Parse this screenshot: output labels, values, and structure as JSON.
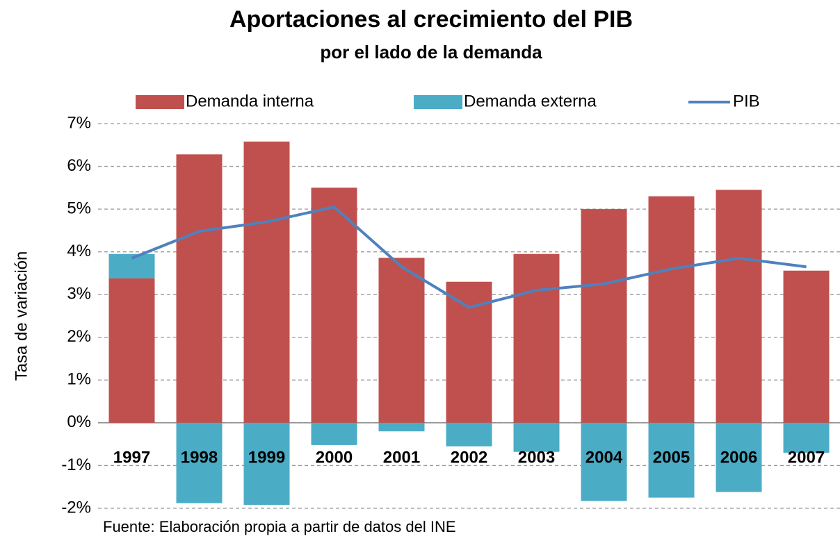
{
  "chart_data": {
    "type": "bar",
    "title": "Aportaciones al crecimiento del PIB",
    "subtitle": "por el lado de la demanda",
    "y_label": "Tasa de variación",
    "source": "Fuente: Elaboración propia a partir de datos del INE",
    "categories": [
      "1997",
      "1998",
      "1999",
      "2000",
      "2001",
      "2002",
      "2003",
      "2004",
      "2005",
      "2006",
      "2007"
    ],
    "series": [
      {
        "name": "Demanda interna",
        "color": "#c0504d",
        "type": "bar",
        "values": [
          3.38,
          6.28,
          6.58,
          5.5,
          3.86,
          3.3,
          3.95,
          5.0,
          5.3,
          5.45,
          3.56
        ]
      },
      {
        "name": "Demanda externa",
        "color": "#4bacc6",
        "type": "bar",
        "values": [
          0.57,
          -1.88,
          -1.92,
          -0.52,
          -0.2,
          -0.55,
          -0.68,
          -1.83,
          -1.75,
          -1.62,
          -0.7
        ]
      },
      {
        "name": "PIB",
        "color": "#4f81bd",
        "type": "line",
        "values": [
          3.85,
          4.48,
          4.7,
          5.05,
          3.65,
          2.7,
          3.1,
          3.25,
          3.6,
          3.85,
          3.65
        ]
      }
    ],
    "stacked": true,
    "ylim": [
      -2,
      7
    ],
    "yticks": [
      {
        "value": -2,
        "label": "-2%"
      },
      {
        "value": -1,
        "label": "-1%"
      },
      {
        "value": 0,
        "label": "0%"
      },
      {
        "value": 1,
        "label": "1%"
      },
      {
        "value": 2,
        "label": "2%"
      },
      {
        "value": 3,
        "label": "3%"
      },
      {
        "value": 4,
        "label": "4%"
      },
      {
        "value": 5,
        "label": "5%"
      },
      {
        "value": 6,
        "label": "6%"
      },
      {
        "value": 7,
        "label": "7%"
      }
    ],
    "grid": true,
    "legend": "top"
  }
}
